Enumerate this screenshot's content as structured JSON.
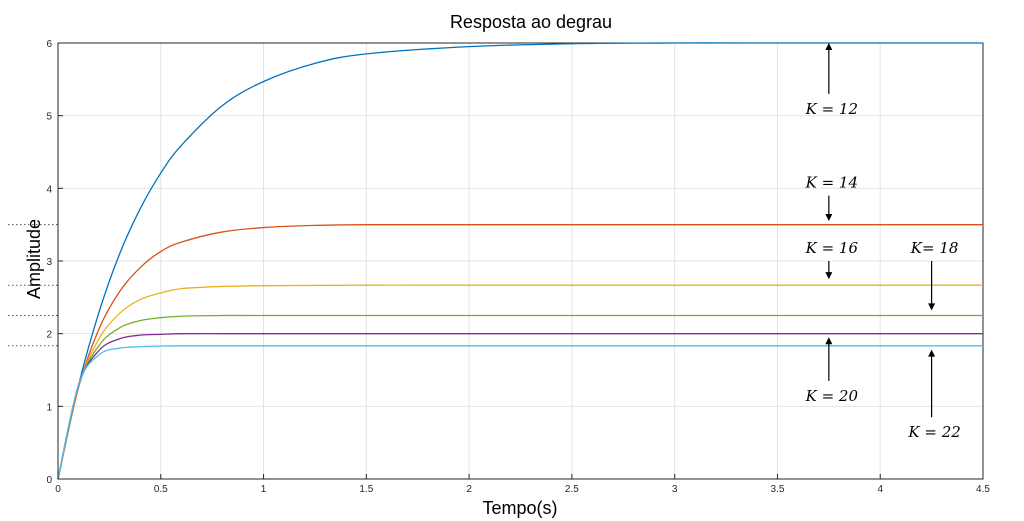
{
  "chart_data": {
    "type": "line",
    "title": "Resposta ao degrau",
    "xlabel": "Tempo(s)",
    "ylabel": "Amplitude",
    "xlim": [
      0,
      4.5
    ],
    "ylim": [
      0,
      6
    ],
    "xticks": [
      "0",
      "0.5",
      "1",
      "1.5",
      "2",
      "2.5",
      "3",
      "3.5",
      "4",
      "4.5"
    ],
    "yticks": [
      "0",
      "1",
      "2",
      "3",
      "4",
      "5",
      "6"
    ],
    "grid": true,
    "series": [
      {
        "name": "K = 12",
        "color": "#0072BD",
        "final": 6.0,
        "x": [
          0,
          0.1,
          0.2,
          0.3,
          0.4,
          0.5,
          0.6,
          0.8,
          1.0,
          1.25,
          1.5,
          2.0,
          2.5,
          3.0,
          3.5,
          4.0,
          4.5
        ],
        "y": [
          0,
          1.29,
          2.3,
          3.1,
          3.72,
          4.21,
          4.59,
          5.14,
          5.47,
          5.72,
          5.85,
          5.95,
          5.99,
          6.0,
          6.0,
          6.0,
          6.0
        ]
      },
      {
        "name": "K = 14",
        "color": "#D95319",
        "final": 3.5,
        "x": [
          0,
          0.1,
          0.2,
          0.3,
          0.4,
          0.5,
          0.6,
          0.8,
          1.0,
          1.25,
          1.5,
          2.0,
          3.0,
          4.5
        ],
        "y": [
          0,
          1.26,
          2.07,
          2.58,
          2.91,
          3.13,
          3.26,
          3.4,
          3.46,
          3.49,
          3.5,
          3.5,
          3.5,
          3.5
        ]
      },
      {
        "name": "K = 16",
        "color": "#EDB120",
        "final": 2.667,
        "x": [
          0,
          0.1,
          0.2,
          0.3,
          0.4,
          0.5,
          0.6,
          0.8,
          1.0,
          1.5,
          2.0,
          4.5
        ],
        "y": [
          0,
          1.27,
          1.93,
          2.28,
          2.47,
          2.56,
          2.62,
          2.65,
          2.66,
          2.667,
          2.667,
          2.667
        ]
      },
      {
        "name": "K = 18",
        "color": "#77AC30",
        "final": 2.25,
        "x": [
          0,
          0.1,
          0.2,
          0.3,
          0.4,
          0.5,
          0.6,
          0.8,
          1.0,
          2.0,
          4.5
        ],
        "y": [
          0,
          1.28,
          1.84,
          2.08,
          2.18,
          2.22,
          2.24,
          2.25,
          2.25,
          2.25,
          2.25
        ]
      },
      {
        "name": "K = 20",
        "color": "#7E2F8E",
        "final": 2.0,
        "x": [
          0,
          0.1,
          0.2,
          0.3,
          0.4,
          0.5,
          0.6,
          0.8,
          1.0,
          2.0,
          4.5
        ],
        "y": [
          0,
          1.29,
          1.77,
          1.93,
          1.98,
          1.99,
          2.0,
          2.0,
          2.0,
          2.0,
          2.0
        ]
      },
      {
        "name": "K = 22",
        "color": "#4DBEEE",
        "final": 1.833,
        "x": [
          0,
          0.1,
          0.2,
          0.3,
          0.4,
          0.5,
          0.6,
          0.8,
          1.0,
          2.0,
          4.5
        ],
        "y": [
          0,
          1.3,
          1.71,
          1.8,
          1.82,
          1.83,
          1.833,
          1.833,
          1.833,
          1.833,
          1.833
        ]
      }
    ],
    "reference_lines": [
      3.5,
      2.667,
      2.25,
      1.833
    ],
    "annotations": [
      {
        "label": "K = 12",
        "arrow_x": 3.75,
        "arrow_from": 5.3,
        "arrow_to": 6.0
      },
      {
        "label": "K = 14",
        "arrow_x": 3.75,
        "arrow_from": 3.9,
        "arrow_to": 3.55
      },
      {
        "label": "K = 16",
        "arrow_x": 3.75,
        "arrow_from": 3.0,
        "arrow_to": 2.75
      },
      {
        "label": "K= 18",
        "arrow_x": 4.25,
        "arrow_from": 3.0,
        "arrow_to": 2.32
      },
      {
        "label": "K = 20",
        "arrow_x": 3.75,
        "arrow_from": 1.35,
        "arrow_to": 1.95
      },
      {
        "label": "K = 22",
        "arrow_x": 4.25,
        "arrow_from": 0.85,
        "arrow_to": 1.78
      }
    ]
  }
}
